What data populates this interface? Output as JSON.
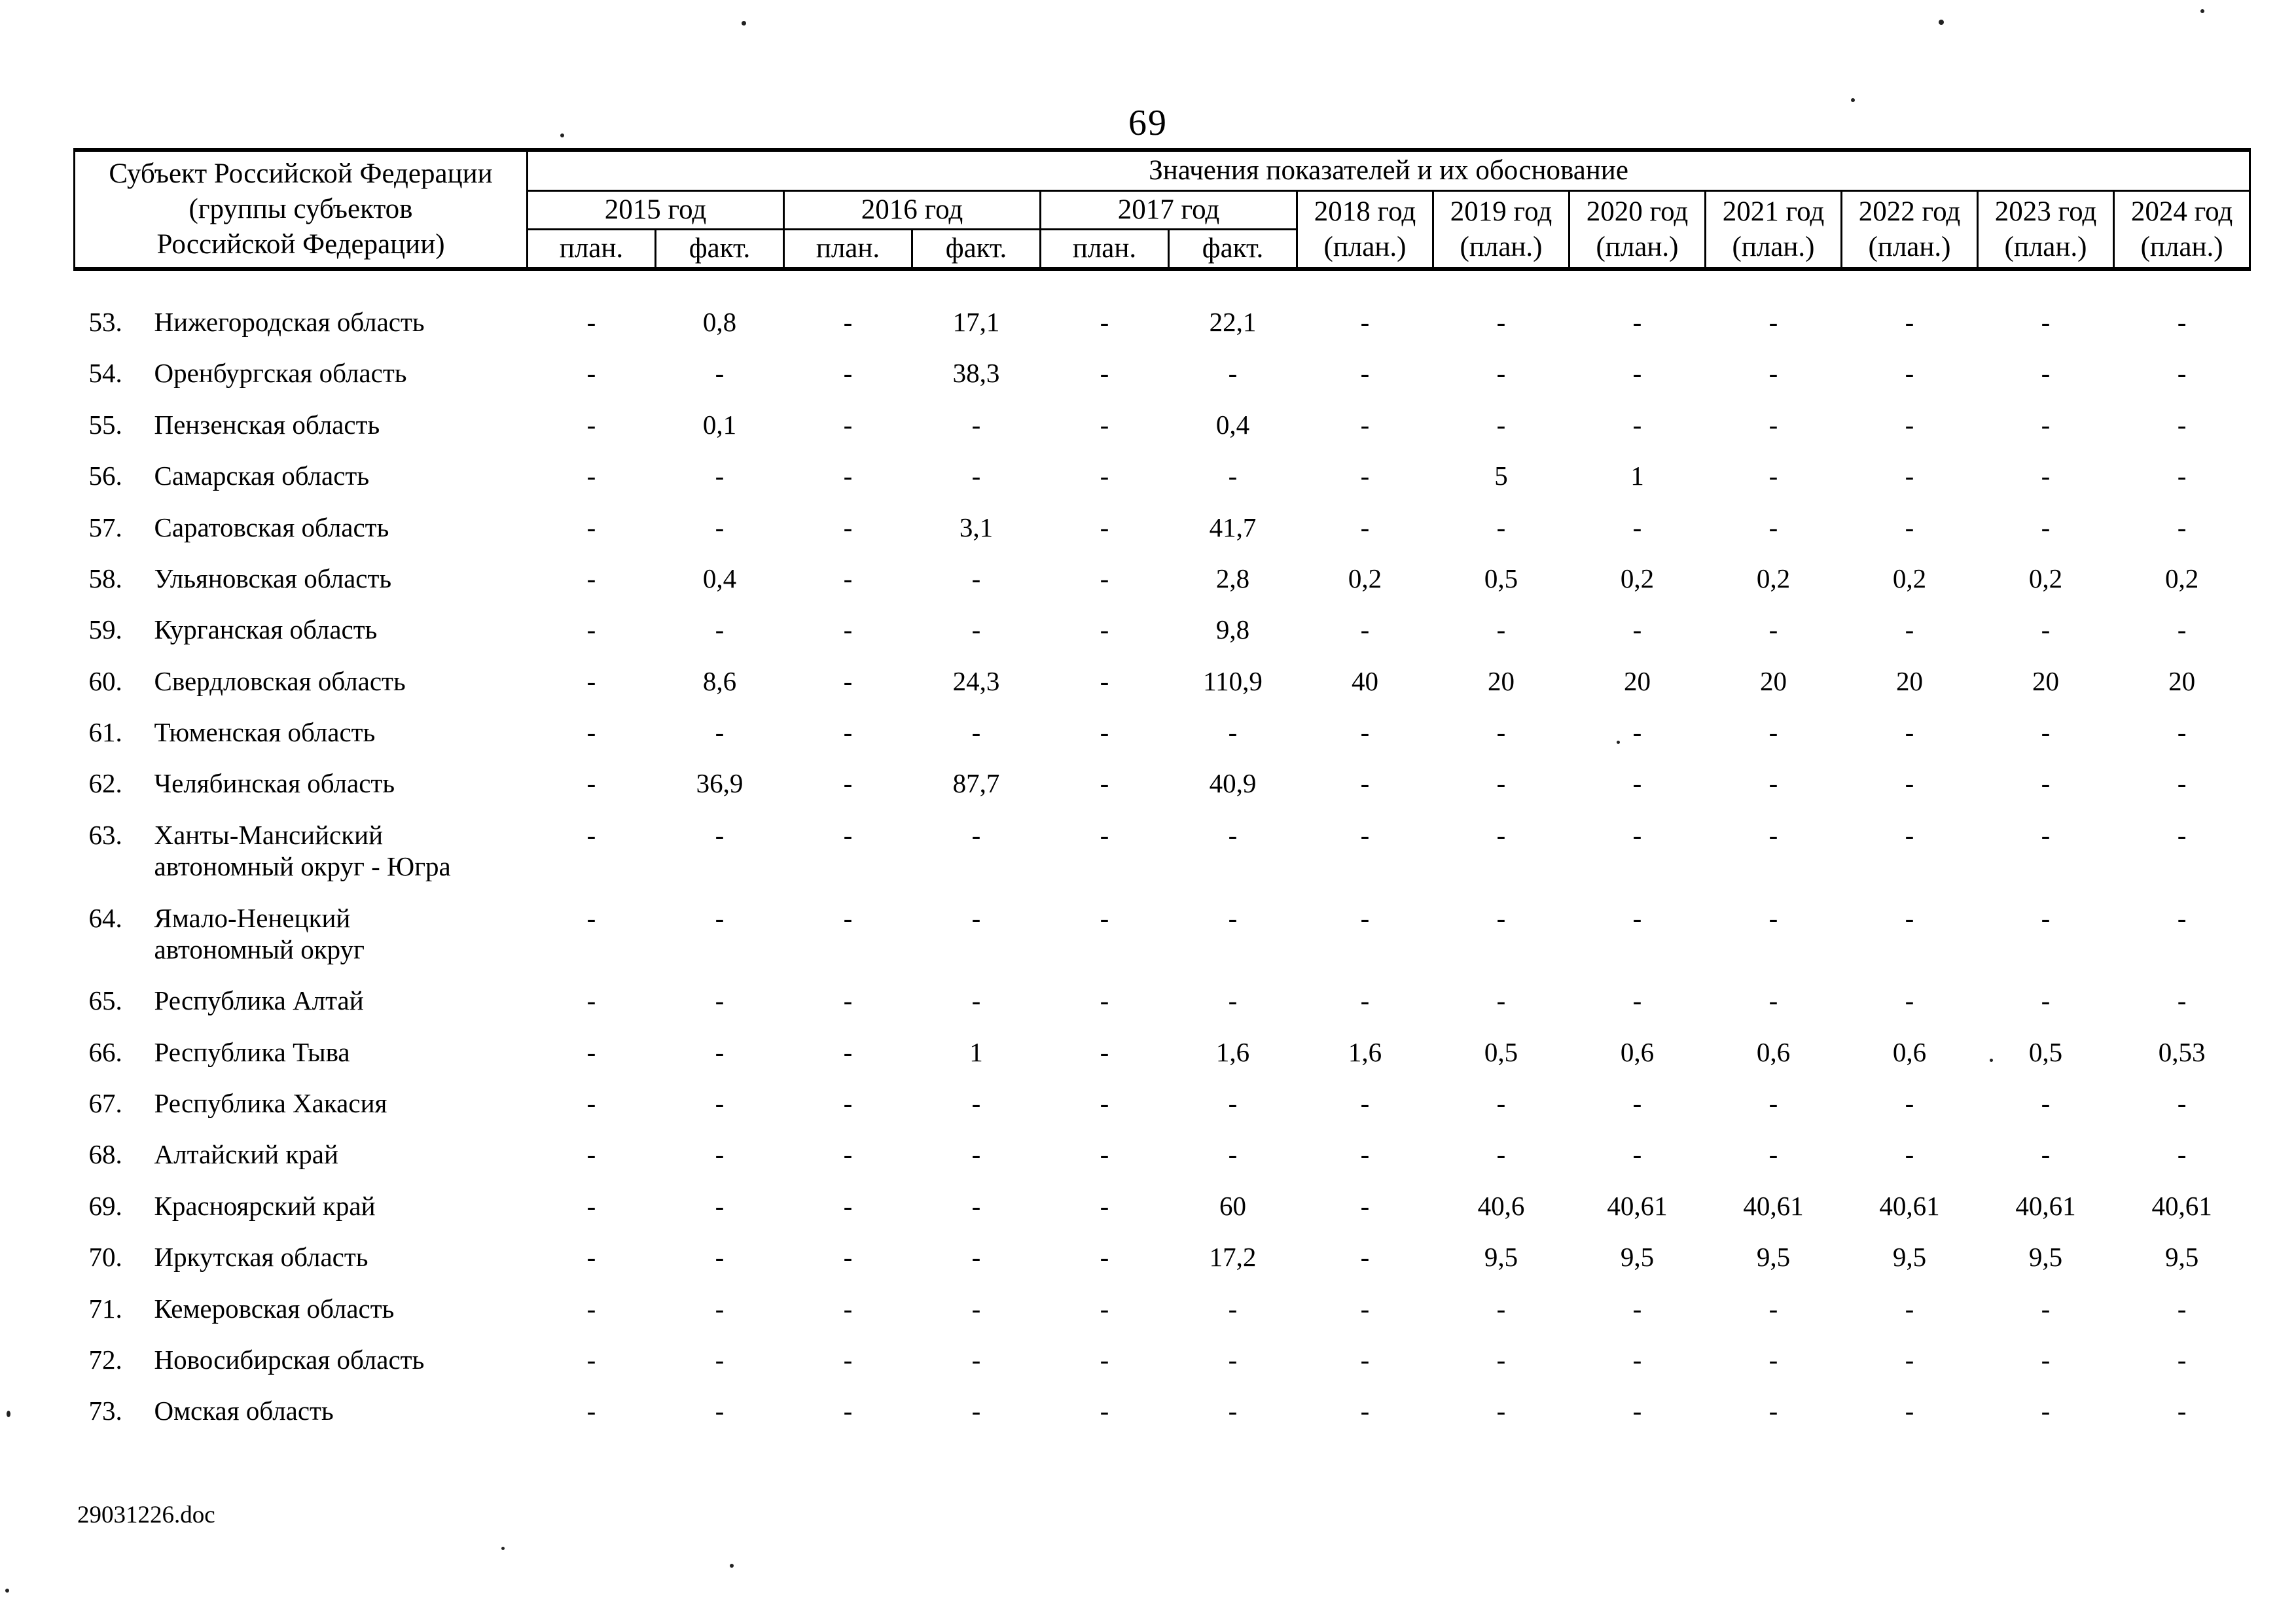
{
  "page": {
    "number": "69",
    "footer": "29031226.doc"
  },
  "table": {
    "region_header": "Субъект Российской Федерации\n(группы субъектов\nРоссийской Федерации)",
    "values_header": "Значения показателей и их обоснование",
    "year_groups": [
      {
        "label": "2015 год",
        "sub": [
          "план.",
          "факт."
        ]
      },
      {
        "label": "2016 год",
        "sub": [
          "план.",
          "факт."
        ]
      },
      {
        "label": "2017 год",
        "sub": [
          "план.",
          "факт."
        ]
      },
      {
        "label": "2018 год",
        "sub": [
          "(план.)"
        ]
      },
      {
        "label": "2019 год",
        "sub": [
          "(план.)"
        ]
      },
      {
        "label": "2020 год",
        "sub": [
          "(план.)"
        ]
      },
      {
        "label": "2021 год",
        "sub": [
          "(план.)"
        ]
      },
      {
        "label": "2022 год",
        "sub": [
          "(план.)"
        ]
      },
      {
        "label": "2023 год",
        "sub": [
          "(план.)"
        ]
      },
      {
        "label": "2024 год",
        "sub": [
          "(план.)"
        ]
      }
    ],
    "rows": [
      {
        "num": "53.",
        "name": "Нижегородская область",
        "values": [
          "-",
          "0,8",
          "-",
          "17,1",
          "-",
          "22,1",
          "-",
          "-",
          "-",
          "-",
          "-",
          "-",
          "-"
        ]
      },
      {
        "num": "54.",
        "name": "Оренбургская область",
        "values": [
          "-",
          "-",
          "-",
          "38,3",
          "-",
          "-",
          "-",
          "-",
          "-",
          "-",
          "-",
          "-",
          "-"
        ]
      },
      {
        "num": "55.",
        "name": "Пензенская область",
        "values": [
          "-",
          "0,1",
          "-",
          "-",
          "-",
          "0,4",
          "-",
          "-",
          "-",
          "-",
          "-",
          "-",
          "-"
        ]
      },
      {
        "num": "56.",
        "name": "Самарская область",
        "values": [
          "-",
          "-",
          "-",
          "-",
          "-",
          "-",
          "-",
          "5",
          "1",
          "-",
          "-",
          "-",
          "-"
        ]
      },
      {
        "num": "57.",
        "name": "Саратовская область",
        "values": [
          "-",
          "-",
          "-",
          "3,1",
          "-",
          "41,7",
          "-",
          "-",
          "-",
          "-",
          "-",
          "-",
          "-"
        ]
      },
      {
        "num": "58.",
        "name": "Ульяновская область",
        "values": [
          "-",
          "0,4",
          "-",
          "-",
          "-",
          "2,8",
          "0,2",
          "0,5",
          "0,2",
          "0,2",
          "0,2",
          "0,2",
          "0,2"
        ]
      },
      {
        "num": "59.",
        "name": "Курганская область",
        "values": [
          "-",
          "-",
          "-",
          "-",
          "-",
          "9,8",
          "-",
          "-",
          "-",
          "-",
          "-",
          "-",
          "-"
        ]
      },
      {
        "num": "60.",
        "name": "Свердловская область",
        "values": [
          "-",
          "8,6",
          "-",
          "24,3",
          "-",
          "110,9",
          "40",
          "20",
          "20",
          "20",
          "20",
          "20",
          "20"
        ]
      },
      {
        "num": "61.",
        "name": "Тюменская область",
        "values": [
          "-",
          "-",
          "-",
          "-",
          "-",
          "-",
          "-",
          "-",
          "-",
          "-",
          "-",
          "-",
          "-"
        ]
      },
      {
        "num": "62.",
        "name": "Челябинская область",
        "values": [
          "-",
          "36,9",
          "-",
          "87,7",
          "-",
          "40,9",
          "-",
          "-",
          "-",
          "-",
          "-",
          "-",
          "-"
        ]
      },
      {
        "num": "63.",
        "name": "Ханты-Мансийский\nавтономный округ - Югра",
        "values": [
          "-",
          "-",
          "-",
          "-",
          "-",
          "-",
          "-",
          "-",
          "-",
          "-",
          "-",
          "-",
          "-"
        ]
      },
      {
        "num": "64.",
        "name": "Ямало-Ненецкий\nавтономный округ",
        "values": [
          "-",
          "-",
          "-",
          "-",
          "-",
          "-",
          "-",
          "-",
          "-",
          "-",
          "-",
          "-",
          "-"
        ]
      },
      {
        "num": "65.",
        "name": "Республика Алтай",
        "values": [
          "-",
          "-",
          "-",
          "-",
          "-",
          "-",
          "-",
          "-",
          "-",
          "-",
          "-",
          "-",
          "-"
        ]
      },
      {
        "num": "66.",
        "name": "Республика Тыва",
        "values": [
          "-",
          "-",
          "-",
          "1",
          "-",
          "1,6",
          "1,6",
          "0,5",
          "0,6",
          "0,6",
          "0,6",
          "0,5",
          "0,53"
        ]
      },
      {
        "num": "67.",
        "name": "Республика Хакасия",
        "values": [
          "-",
          "-",
          "-",
          "-",
          "-",
          "-",
          "-",
          "-",
          "-",
          "-",
          "-",
          "-",
          "-"
        ]
      },
      {
        "num": "68.",
        "name": "Алтайский край",
        "values": [
          "-",
          "-",
          "-",
          "-",
          "-",
          "-",
          "-",
          "-",
          "-",
          "-",
          "-",
          "-",
          "-"
        ]
      },
      {
        "num": "69.",
        "name": "Красноярский край",
        "values": [
          "-",
          "-",
          "-",
          "-",
          "-",
          "60",
          "-",
          "40,6",
          "40,61",
          "40,61",
          "40,61",
          "40,61",
          "40,61"
        ]
      },
      {
        "num": "70.",
        "name": "Иркутская область",
        "values": [
          "-",
          "-",
          "-",
          "-",
          "-",
          "17,2",
          "-",
          "9,5",
          "9,5",
          "9,5",
          "9,5",
          "9,5",
          "9,5"
        ]
      },
      {
        "num": "71.",
        "name": "Кемеровская область",
        "values": [
          "-",
          "-",
          "-",
          "-",
          "-",
          "-",
          "-",
          "-",
          "-",
          "-",
          "-",
          "-",
          "-"
        ]
      },
      {
        "num": "72.",
        "name": "Новосибирская область",
        "values": [
          "-",
          "-",
          "-",
          "-",
          "-",
          "-",
          "-",
          "-",
          "-",
          "-",
          "-",
          "-",
          "-"
        ]
      },
      {
        "num": "73.",
        "name": "Омская область",
        "values": [
          "-",
          "-",
          "-",
          "-",
          "-",
          "-",
          "-",
          "-",
          "-",
          "-",
          "-",
          "-",
          "-"
        ]
      }
    ]
  }
}
